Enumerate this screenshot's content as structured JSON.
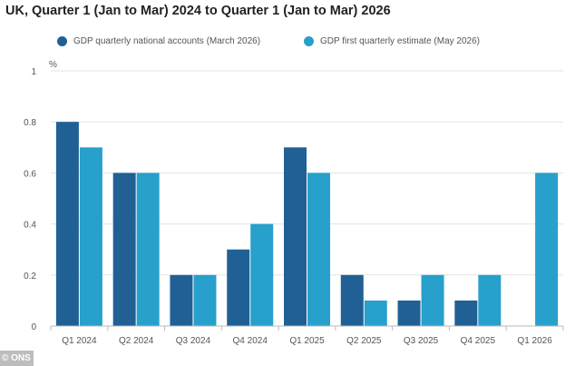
{
  "chart_data": {
    "type": "bar",
    "title": "UK, Quarter 1 (Jan to Mar) 2024 to Quarter 1 (Jan to Mar) 2026",
    "ylabel": "%",
    "xlabel": "",
    "ylim": [
      0,
      1
    ],
    "yticks": [
      "0",
      "0.2",
      "0.4",
      "0.6",
      "0.8",
      "1"
    ],
    "ytick_values": [
      0,
      0.2,
      0.4,
      0.6,
      0.8,
      1
    ],
    "grid": true,
    "legend_position": "top",
    "categories": [
      "Q1 2024",
      "Q2 2024",
      "Q3 2024",
      "Q4 2024",
      "Q1 2025",
      "Q2 2025",
      "Q3 2025",
      "Q4 2025",
      "Q1 2026"
    ],
    "series": [
      {
        "name": "GDP quarterly national accounts (March 2026)",
        "color": "#206095",
        "values": [
          0.8,
          0.6,
          0.2,
          0.3,
          0.7,
          0.2,
          0.1,
          0.1,
          null
        ]
      },
      {
        "name": "GDP first quarterly estimate (May 2026)",
        "color": "#27a0cc",
        "values": [
          0.7,
          0.6,
          0.2,
          0.4,
          0.6,
          0.1,
          0.2,
          0.2,
          0.6
        ]
      }
    ]
  },
  "source_badge": "© ONS"
}
